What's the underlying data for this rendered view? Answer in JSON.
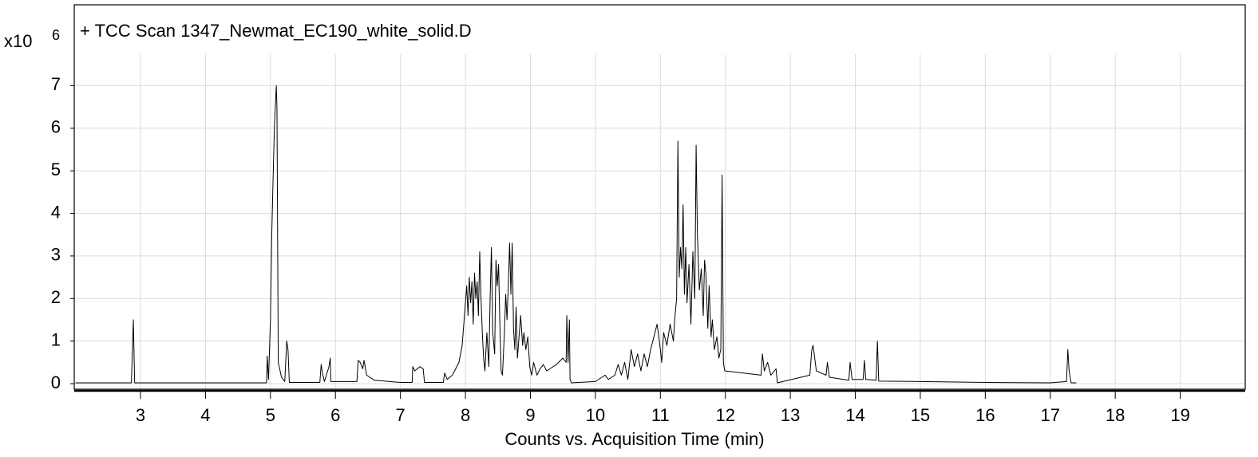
{
  "chart_data": {
    "type": "line",
    "title": "+ TCC Scan 1347_Newmat_EC190_white_solid.D",
    "y_multiplier": "x10",
    "y_exponent": "6",
    "x_label": "Counts vs. Acquisition Time (min)",
    "color": "#000000",
    "grid": true,
    "xlim": [
      2,
      20
    ],
    "ylim": [
      -0.13,
      8.9
    ],
    "xticks": [
      3,
      4,
      5,
      6,
      7,
      8,
      9,
      10,
      11,
      12,
      13,
      14,
      15,
      16,
      17,
      18,
      19
    ],
    "yticks": [
      0,
      1,
      2,
      3,
      4,
      5,
      6,
      7
    ],
    "x": [
      2.0,
      2.86,
      2.88,
      2.89,
      2.91,
      4.94,
      4.95,
      4.97,
      5.0,
      5.02,
      5.04,
      5.06,
      5.09,
      5.1,
      5.12,
      5.17,
      5.22,
      5.25,
      5.27,
      5.29,
      5.76,
      5.78,
      5.8,
      5.83,
      5.9,
      5.92,
      5.93,
      6.33,
      6.35,
      6.38,
      6.42,
      6.44,
      6.48,
      6.6,
      7.0,
      7.18,
      7.19,
      7.22,
      7.26,
      7.3,
      7.35,
      7.37,
      7.66,
      7.68,
      7.72,
      7.8,
      7.9,
      7.95,
      7.98,
      8.0,
      8.02,
      8.04,
      8.06,
      8.08,
      8.1,
      8.12,
      8.14,
      8.16,
      8.18,
      8.2,
      8.22,
      8.24,
      8.26,
      8.28,
      8.3,
      8.33,
      8.36,
      8.38,
      8.4,
      8.42,
      8.45,
      8.47,
      8.49,
      8.51,
      8.53,
      8.55,
      8.57,
      8.6,
      8.62,
      8.64,
      8.66,
      8.68,
      8.7,
      8.72,
      8.74,
      8.76,
      8.78,
      8.8,
      8.82,
      8.85,
      8.88,
      8.9,
      8.93,
      8.96,
      8.99,
      9.02,
      9.05,
      9.1,
      9.15,
      9.2,
      9.25,
      9.3,
      9.4,
      9.5,
      9.55,
      9.56,
      9.58,
      9.6,
      9.61,
      9.63,
      10.0,
      10.15,
      10.2,
      10.3,
      10.35,
      10.4,
      10.45,
      10.5,
      10.55,
      10.6,
      10.65,
      10.7,
      10.75,
      10.8,
      10.85,
      10.9,
      10.95,
      11.0,
      11.02,
      11.05,
      11.1,
      11.15,
      11.2,
      11.22,
      11.25,
      11.27,
      11.29,
      11.31,
      11.33,
      11.35,
      11.37,
      11.39,
      11.41,
      11.44,
      11.47,
      11.5,
      11.53,
      11.55,
      11.57,
      11.6,
      11.63,
      11.66,
      11.68,
      11.7,
      11.73,
      11.75,
      11.78,
      11.8,
      11.83,
      11.87,
      11.9,
      11.93,
      11.95,
      11.97,
      11.99,
      12.55,
      12.57,
      12.6,
      12.65,
      12.7,
      12.78,
      12.8,
      13.3,
      13.33,
      13.35,
      13.4,
      13.55,
      13.57,
      13.6,
      13.9,
      13.92,
      13.95,
      14.12,
      14.14,
      14.16,
      14.32,
      14.34,
      14.36,
      15.0,
      16.0,
      17.0,
      17.25,
      17.27,
      17.29,
      17.32,
      17.4
    ],
    "values": [
      0.02,
      0.02,
      1.0,
      1.5,
      0.02,
      0.02,
      0.65,
      0.1,
      1.5,
      3.5,
      4.8,
      6.0,
      7.0,
      6.5,
      0.5,
      0.15,
      0.05,
      1.0,
      0.8,
      0.03,
      0.03,
      0.45,
      0.25,
      0.05,
      0.4,
      0.6,
      0.05,
      0.05,
      0.55,
      0.5,
      0.35,
      0.55,
      0.2,
      0.08,
      0.03,
      0.03,
      0.4,
      0.3,
      0.35,
      0.4,
      0.35,
      0.03,
      0.03,
      0.25,
      0.1,
      0.2,
      0.5,
      0.9,
      1.5,
      1.9,
      2.3,
      1.6,
      2.5,
      1.9,
      2.4,
      1.4,
      2.6,
      2.0,
      2.4,
      1.6,
      3.1,
      2.0,
      1.2,
      0.6,
      0.3,
      1.2,
      0.4,
      2.0,
      3.2,
      1.2,
      0.7,
      2.9,
      2.3,
      2.8,
      1.4,
      0.3,
      0.2,
      1.2,
      2.1,
      1.5,
      2.3,
      3.3,
      2.1,
      3.3,
      1.3,
      0.8,
      1.8,
      0.6,
      1.0,
      1.6,
      0.9,
      1.2,
      0.8,
      1.1,
      0.4,
      0.2,
      0.5,
      0.2,
      0.35,
      0.45,
      0.3,
      0.35,
      0.45,
      0.6,
      0.5,
      1.6,
      0.5,
      1.5,
      0.1,
      0.02,
      0.05,
      0.2,
      0.1,
      0.2,
      0.45,
      0.2,
      0.5,
      0.1,
      0.8,
      0.4,
      0.7,
      0.3,
      0.7,
      0.4,
      0.8,
      1.1,
      1.4,
      0.8,
      0.5,
      1.2,
      0.9,
      1.4,
      1.0,
      1.5,
      2.0,
      5.7,
      2.5,
      3.2,
      2.7,
      4.2,
      2.1,
      3.2,
      1.9,
      2.8,
      1.4,
      3.1,
      2.0,
      5.6,
      3.5,
      2.2,
      2.7,
      1.6,
      2.9,
      2.6,
      1.3,
      2.3,
      1.1,
      1.5,
      0.8,
      1.1,
      0.6,
      0.8,
      4.9,
      0.5,
      0.3,
      0.2,
      0.7,
      0.3,
      0.5,
      0.2,
      0.35,
      0.02,
      0.2,
      0.8,
      0.9,
      0.3,
      0.2,
      0.5,
      0.15,
      0.08,
      0.5,
      0.1,
      0.1,
      0.55,
      0.1,
      0.08,
      1.0,
      0.06,
      0.05,
      0.03,
      0.02,
      0.05,
      0.8,
      0.3,
      0.02,
      0.02
    ]
  }
}
